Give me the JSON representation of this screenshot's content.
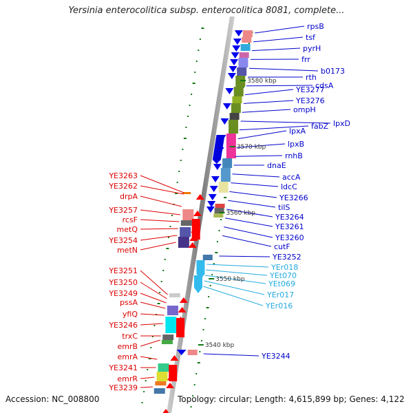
{
  "title": "Yersinia enterocolitica subsp. enterocolitica 8081, complete...",
  "footer": {
    "accession": "Accession: NC_008800",
    "summary": "Topology: circular; Length: 4,615,899 bp; Genes: 4,122"
  },
  "scale_marks": [
    "3580 kbp",
    "3570 kbp",
    "3560 kbp",
    "3550 kbp",
    "3540 kbp"
  ],
  "colors": {
    "forward": "#ff0000",
    "reverse": "#0000ee",
    "rna": "#33bbdd",
    "backbone": "#888888"
  },
  "labels_right_blue": [
    "rpsB",
    "tsf",
    "pyrH",
    "frr",
    "b0173",
    "rth",
    "cdsA",
    "YE3277",
    "YE3276",
    "ompH",
    "lpxD",
    "fabZ",
    "lpxA",
    "lpxB",
    "rnhB",
    "dnaE",
    "accA",
    "ldcC",
    "YE3266",
    "tilS",
    "YE3264",
    "YE3261",
    "YE3260",
    "cutF",
    "YE3252",
    "YE3244"
  ],
  "labels_right_cyan": [
    "YEr018",
    "YEt070",
    "YEt069",
    "YEr017",
    "YEr016"
  ],
  "labels_left_red": [
    "YE3263",
    "YE3262",
    "drpA",
    "YE3257",
    "rcsF",
    "metQ",
    "YE3254",
    "metN",
    "YE3251",
    "YE3250",
    "YE3249",
    "pssA",
    "yfiQ",
    "YE3246",
    "trxC",
    "emrB",
    "emrA",
    "YE3241",
    "emrR",
    "YE3239"
  ]
}
